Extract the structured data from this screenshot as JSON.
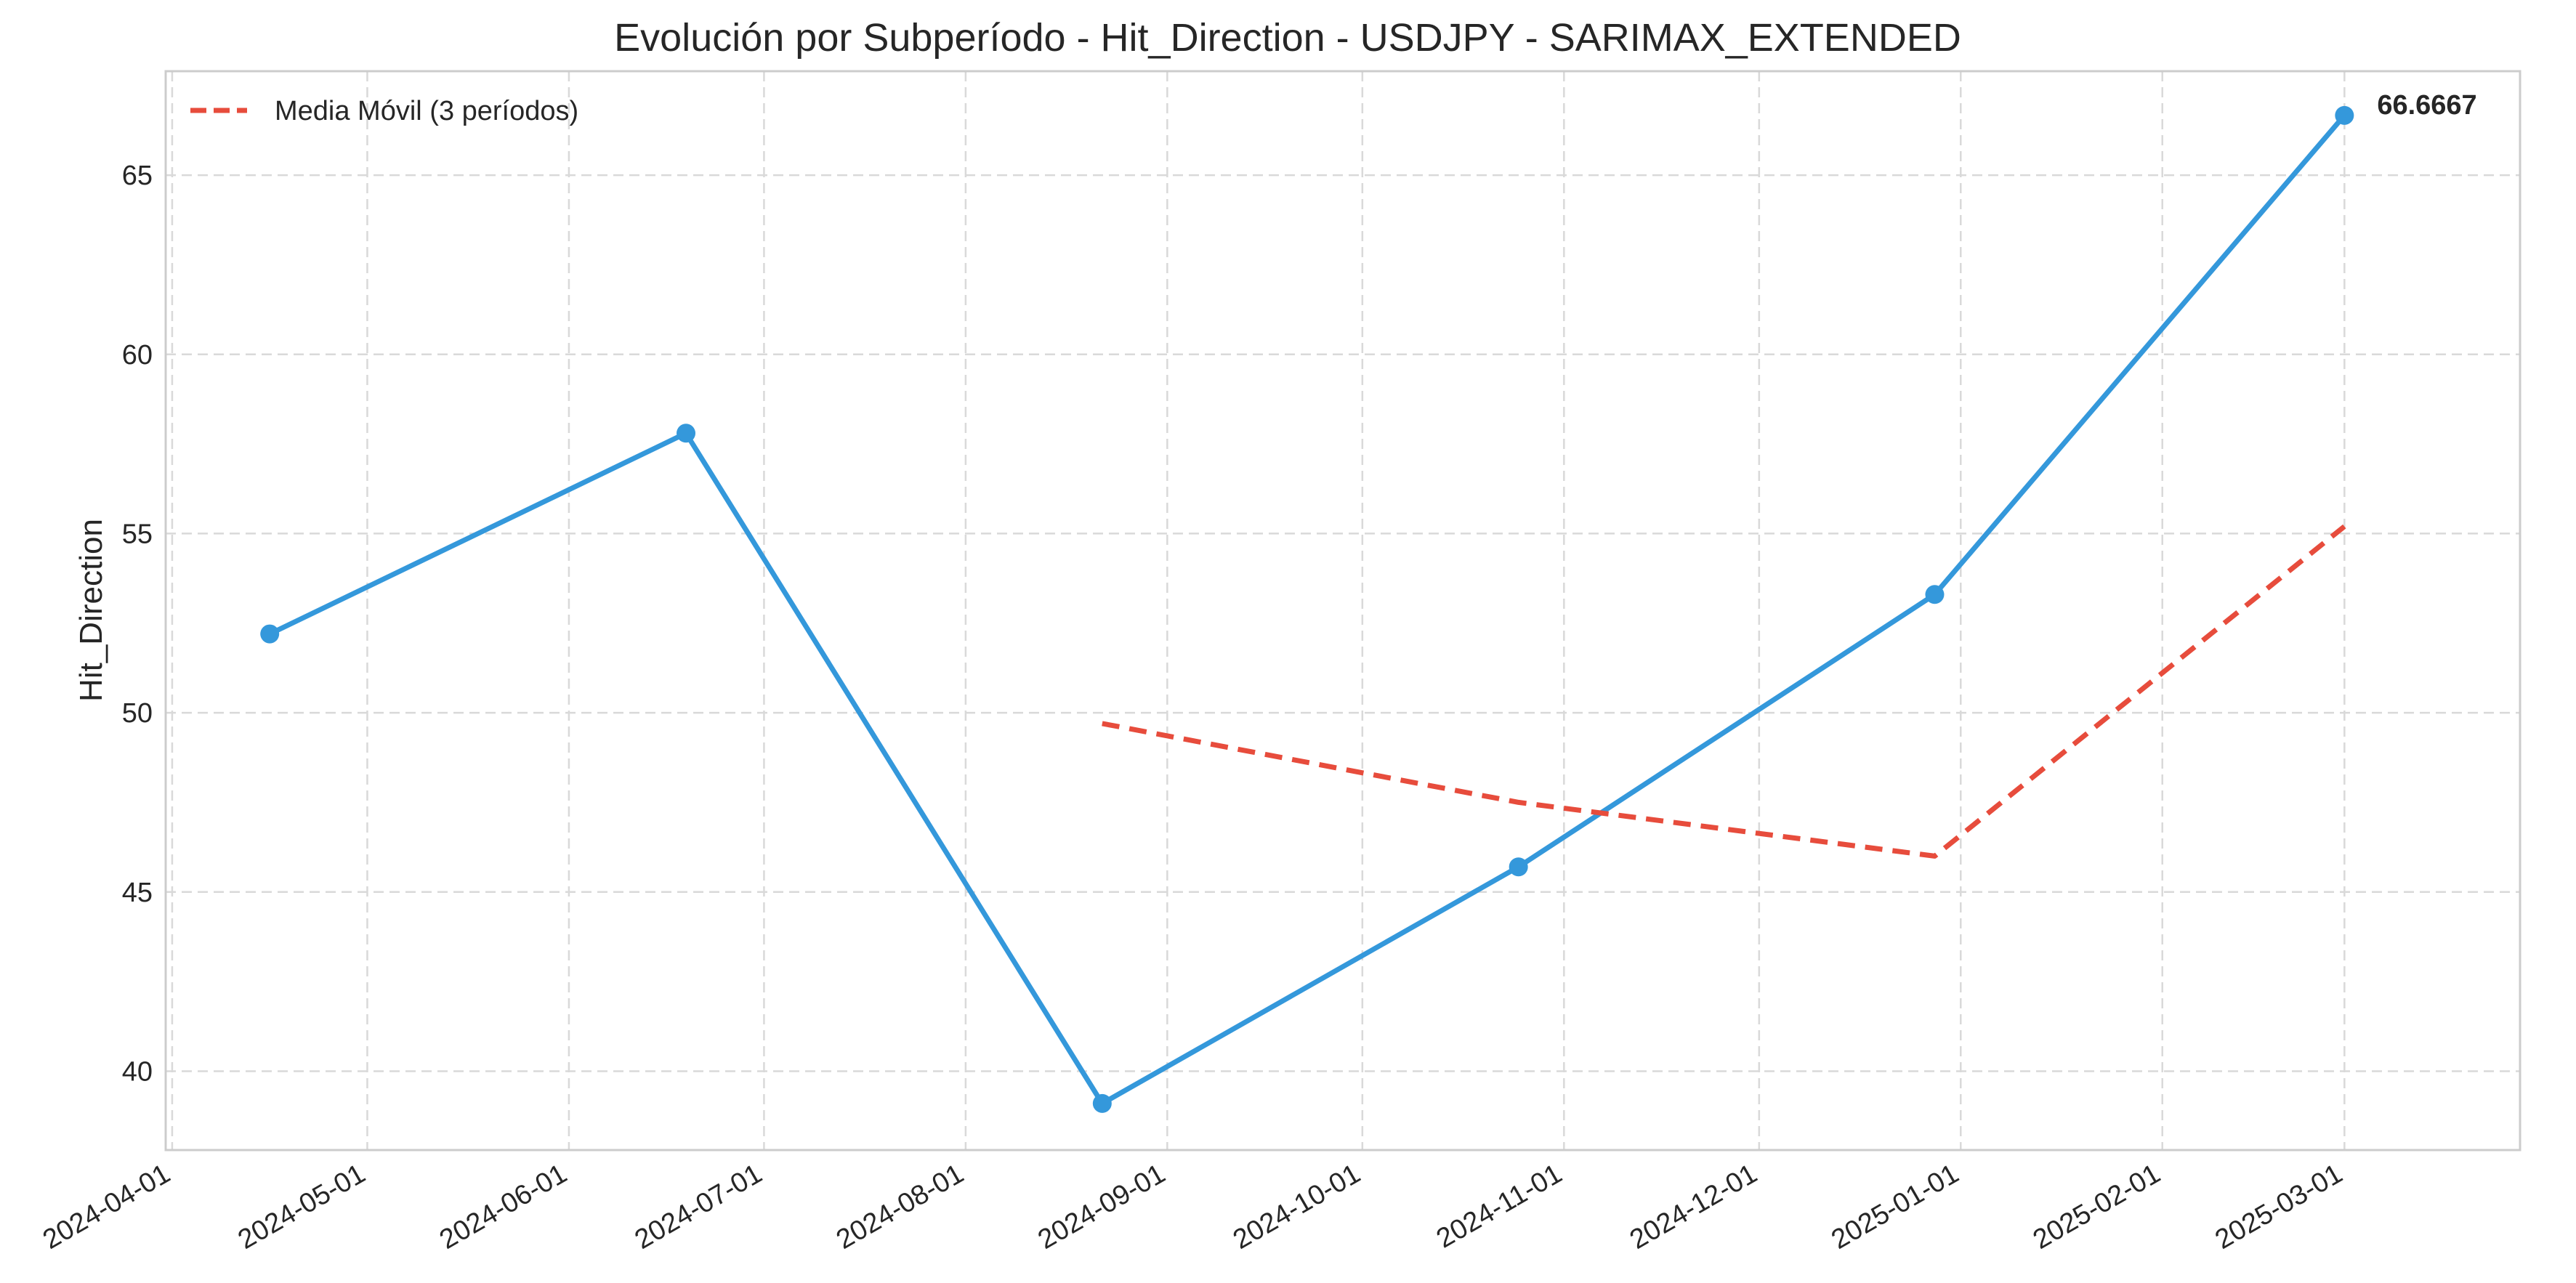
{
  "chart_data": {
    "type": "line",
    "title": "Evolución por Subperíodo - Hit_Direction - USDJPY - SARIMAX_EXTENDED",
    "xlabel": "",
    "ylabel": "Hit_Direction",
    "x_tick_labels": [
      "2024-04-01",
      "2024-05-01",
      "2024-06-01",
      "2024-07-01",
      "2024-08-01",
      "2024-09-01",
      "2024-10-01",
      "2024-11-01",
      "2024-12-01",
      "2025-01-01",
      "2025-02-01",
      "2025-03-01"
    ],
    "y_tick_labels": [
      "40",
      "45",
      "50",
      "55",
      "60",
      "65"
    ],
    "ylim": [
      37.8,
      67.9
    ],
    "xlim": [
      "2024-03-31",
      "2025-03-28"
    ],
    "grid": true,
    "legend_position": "top-left",
    "series": [
      {
        "x": [
          "2024-04-16",
          "2024-06-19",
          "2024-08-22",
          "2024-10-25",
          "2024-12-28",
          "2025-03-01"
        ],
        "y": [
          52.2,
          57.8,
          39.1,
          45.7,
          53.3,
          66.6667
        ],
        "color": "#3498db",
        "style": "solid",
        "markers": true
      },
      {
        "name": "Media Móvil (3 períodos)",
        "x": [
          "2024-08-22",
          "2024-10-25",
          "2024-12-28",
          "2025-03-01"
        ],
        "y": [
          49.7,
          47.5,
          46.0,
          55.2
        ],
        "color": "#e74c3c",
        "style": "dashed",
        "markers": false
      }
    ],
    "annotations": [
      {
        "text": "66.6667",
        "x": "2025-03-01",
        "y": 66.6667
      }
    ]
  }
}
